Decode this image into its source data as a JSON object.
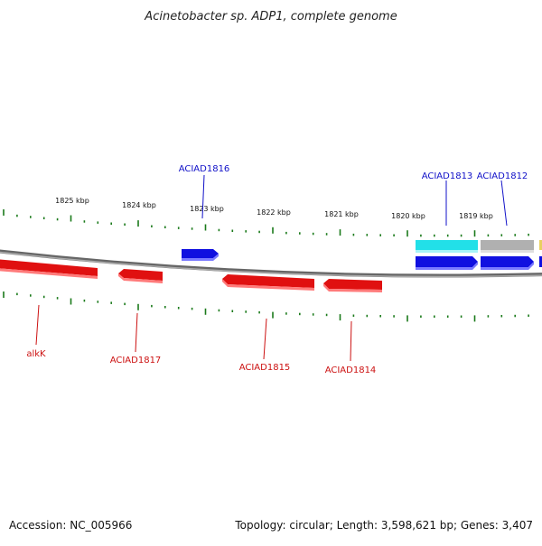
{
  "title": "Acinetobacter sp. ADP1, complete genome",
  "footer": {
    "accession": "Accession: NC_005966",
    "summary": "Topology: circular; Length: 3,598,621 bp; Genes: 3,407"
  },
  "colors": {
    "forward_gene": "#1010e0",
    "reverse_gene": "#e01010",
    "tick": "#1a7a1a",
    "backbone": "#888888",
    "cyan_gene": "#22e0e8",
    "gray_gene": "#b0b0b0",
    "label_forward": "#1010c8",
    "label_reverse": "#cc1111"
  },
  "scale_labels": [
    "1825 kbp",
    "1824 kbp",
    "1823 kbp",
    "1822 kbp",
    "1821 kbp",
    "1820 kbp",
    "1819 kbp"
  ],
  "forward_labels": [
    "ACIAD1816",
    "ACIAD1813",
    "ACIAD1812"
  ],
  "reverse_labels": [
    "alkK",
    "ACIAD1817",
    "ACIAD1815",
    "ACIAD1814"
  ]
}
